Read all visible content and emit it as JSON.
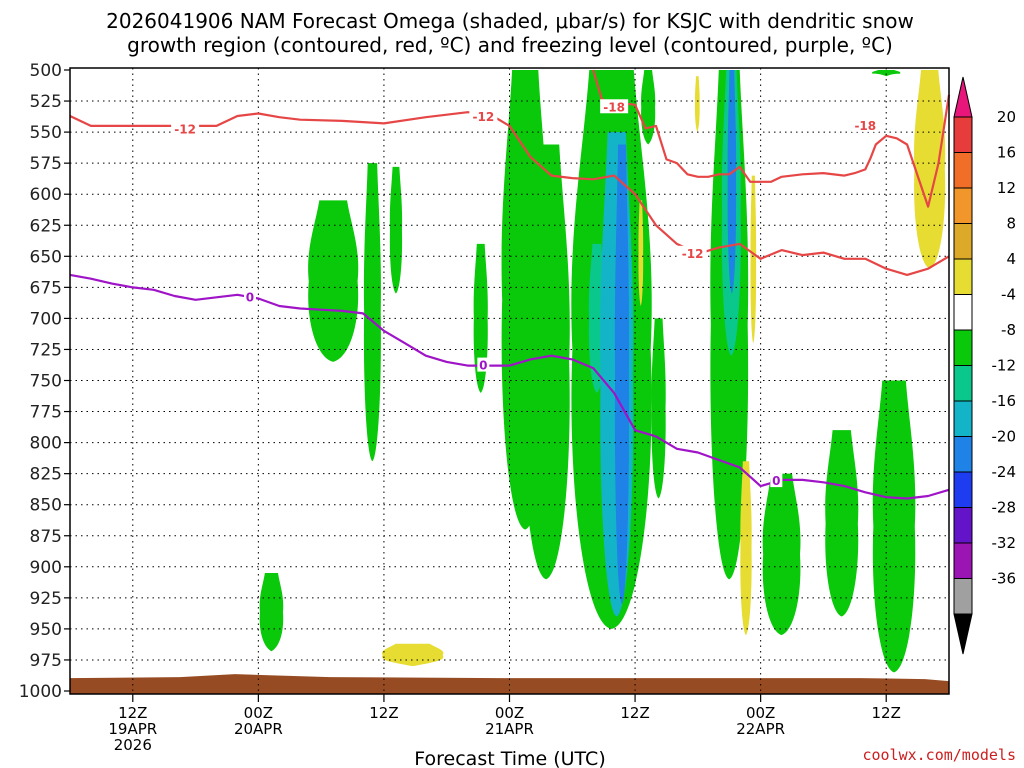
{
  "chart_data": {
    "type": "heatmap",
    "title_line1": "2026041906 NAM Forecast Omega (shaded, μbar/s) for KSJC with dendritic snow",
    "title_line2": "growth region (contoured, red, ºC) and freezing level (contoured, purple, ºC)",
    "xlabel": "Forecast Time (UTC)",
    "ylabel": "",
    "credit": "coolwx.com/models",
    "y_ticks": [
      "500",
      "525",
      "550",
      "575",
      "600",
      "625",
      "650",
      "675",
      "700",
      "725",
      "750",
      "775",
      "800",
      "825",
      "850",
      "875",
      "900",
      "925",
      "950",
      "975",
      "1000"
    ],
    "x_ticks": [
      {
        "t": 12,
        "line1": "12Z",
        "line2": "19APR",
        "line3": "2026"
      },
      {
        "t": 24,
        "line1": "00Z",
        "line2": "20APR",
        "line3": ""
      },
      {
        "t": 36,
        "line1": "12Z",
        "line2": "",
        "line3": ""
      },
      {
        "t": 48,
        "line1": "00Z",
        "line2": "21APR",
        "line3": ""
      },
      {
        "t": 60,
        "line1": "12Z",
        "line2": "",
        "line3": ""
      },
      {
        "t": 72,
        "line1": "00Z",
        "line2": "22APR",
        "line3": ""
      },
      {
        "t": 84,
        "line1": "12Z",
        "line2": "",
        "line3": ""
      }
    ],
    "x_range_hours": [
      6,
      90
    ],
    "y_range_hPa": [
      500,
      1000
    ],
    "grid": true,
    "colorbar": {
      "label_values": [
        "20",
        "16",
        "12",
        "8",
        "4",
        "-4",
        "-8",
        "-12",
        "-16",
        "-20",
        "-24",
        "-28",
        "-32",
        "-36"
      ],
      "colors": [
        "#e8167a",
        "#e63c3c",
        "#f06e28",
        "#f0962a",
        "#dcaa28",
        "#e6dc32",
        "#ffffff",
        "#0ac80a",
        "#0ac88c",
        "#14b4c8",
        "#1e82e6",
        "#1e3cf0",
        "#6414c8",
        "#9b14b4",
        "#a0a0a0",
        "#000000"
      ]
    },
    "omega_regions": [
      {
        "level": "-4",
        "time": [
          28.5,
          33.8
        ],
        "p": [
          605,
          735
        ],
        "note": "weak ascent"
      },
      {
        "level": "-4",
        "time": [
          34.0,
          35.8
        ],
        "p": [
          575,
          815
        ],
        "note": "weak ascent"
      },
      {
        "level": "-4",
        "time": [
          36.5,
          37.8
        ],
        "p": [
          578,
          680
        ],
        "note": "weak ascent"
      },
      {
        "level": "-4",
        "time": [
          24.0,
          26.5
        ],
        "p": [
          905,
          968
        ],
        "note": "weak ascent"
      },
      {
        "level": "-4",
        "time": [
          44.5,
          46.0
        ],
        "p": [
          640,
          760
        ],
        "note": "weak ascent"
      },
      {
        "level": "-4",
        "time": [
          47.0,
          52.0
        ],
        "p": [
          500,
          870
        ],
        "note": "weak ascent"
      },
      {
        "level": "-4",
        "time": [
          49.0,
          54.0
        ],
        "p": [
          560,
          910
        ],
        "note": "weak ascent"
      },
      {
        "level": "-4",
        "time": [
          53.5,
          62.0
        ],
        "p": [
          500,
          950
        ],
        "note": "weak ascent"
      },
      {
        "level": "-8",
        "time": [
          55.5,
          57.2
        ],
        "p": [
          640,
          760
        ],
        "note": "moderate ascent"
      },
      {
        "level": "-12",
        "time": [
          56.5,
          60.0
        ],
        "p": [
          550,
          940
        ],
        "note": "strong ascent"
      },
      {
        "level": "-16",
        "time": [
          58.0,
          59.5
        ],
        "p": [
          560,
          930
        ],
        "note": "strong ascent"
      },
      {
        "level": "-4",
        "time": [
          60.5,
          62.0
        ],
        "p": [
          500,
          560
        ],
        "note": "weak ascent"
      },
      {
        "level": "-4",
        "time": [
          61.5,
          63.0
        ],
        "p": [
          700,
          845
        ],
        "note": "weak ascent"
      },
      {
        "level": "-4",
        "time": [
          67.0,
          71.0
        ],
        "p": [
          500,
          910
        ],
        "note": "weak ascent"
      },
      {
        "level": "-8",
        "time": [
          68.2,
          70.2
        ],
        "p": [
          500,
          730
        ],
        "note": "moderate ascent"
      },
      {
        "level": "-16",
        "time": [
          68.8,
          69.7
        ],
        "p": [
          500,
          680
        ],
        "note": "strong ascent"
      },
      {
        "level": "-4",
        "time": [
          72.0,
          76.0
        ],
        "p": [
          825,
          955
        ],
        "note": "weak ascent"
      },
      {
        "level": "-4",
        "time": [
          78.0,
          81.5
        ],
        "p": [
          790,
          940
        ],
        "note": "weak ascent"
      },
      {
        "level": "-4",
        "time": [
          82.5,
          87.0
        ],
        "p": [
          750,
          985
        ],
        "note": "weak ascent"
      },
      {
        "level": "-4",
        "time": [
          82.5,
          85.5
        ],
        "p": [
          500,
          505
        ],
        "note": "weak ascent"
      },
      {
        "level": "4",
        "time": [
          86.5,
          89.8
        ],
        "p": [
          500,
          660
        ],
        "note": "descent"
      },
      {
        "level": "4",
        "time": [
          65.7,
          66.2
        ],
        "p": [
          505,
          550
        ],
        "note": "descent"
      },
      {
        "level": "4",
        "time": [
          60.3,
          60.8
        ],
        "p": [
          605,
          690
        ],
        "note": "descent"
      },
      {
        "level": "4",
        "time": [
          70.0,
          71.2
        ],
        "p": [
          815,
          955
        ],
        "note": "descent"
      },
      {
        "level": "4",
        "time": [
          71.0,
          71.6
        ],
        "p": [
          585,
          720
        ],
        "note": "descent"
      },
      {
        "level": "4",
        "time": [
          35.5,
          42.0
        ],
        "p": [
          962,
          980
        ],
        "note": "descent"
      }
    ],
    "series": [
      {
        "name": "",
        "kind": "isotherm",
        "label": "-12",
        "color": "#e64646",
        "t": [
          6,
          8,
          12,
          16,
          20,
          22,
          24,
          26,
          28,
          32,
          36,
          40,
          44,
          46,
          48,
          50,
          52,
          54,
          56,
          58,
          60,
          62,
          64,
          66,
          68,
          70,
          72,
          74,
          76,
          78,
          80,
          82,
          84,
          86,
          88,
          90
        ],
        "p": [
          537,
          545,
          545,
          545,
          545,
          537,
          535,
          538,
          540,
          541,
          543,
          538,
          534,
          535,
          545,
          570,
          585,
          587,
          588,
          585,
          600,
          625,
          640,
          648,
          643,
          640,
          652,
          645,
          649,
          647,
          652,
          652,
          660,
          665,
          660,
          650
        ]
      },
      {
        "name": "",
        "kind": "isotherm",
        "label": "-18",
        "color": "#e64646",
        "t": [
          56.0,
          56.8,
          58.0,
          59.0,
          60.0,
          61.0,
          62.0,
          63.0,
          64.0,
          65.0,
          66.0,
          67.0,
          68.0,
          69.0,
          70.0,
          71.0,
          72.0,
          73.0,
          74.0,
          76.0,
          78.0,
          80.0,
          81.0,
          82.0,
          82.5,
          83.0,
          84.0,
          85.0,
          86.0,
          87.0,
          88.0,
          89.0,
          90.0
        ],
        "p": [
          500,
          523,
          530,
          527,
          528,
          547,
          545,
          572,
          575,
          584,
          586,
          586,
          584,
          584,
          578,
          590,
          590,
          590,
          586,
          584,
          583,
          585,
          583,
          580,
          571,
          560,
          553,
          555,
          560,
          585,
          610,
          575,
          520
        ]
      },
      {
        "name": "",
        "kind": "freezing_level",
        "label": "0",
        "color": "#a014c8",
        "t": [
          6,
          8,
          10,
          12,
          14,
          16,
          18,
          20,
          22,
          24,
          26,
          28,
          30,
          32,
          34,
          36,
          38,
          40,
          42,
          44,
          46,
          48,
          50,
          52,
          54,
          56,
          58,
          60,
          62,
          64,
          66,
          68,
          70,
          72,
          74,
          76,
          78,
          80,
          82,
          84,
          86,
          88,
          90
        ],
        "p": [
          665,
          668,
          672,
          675,
          677,
          682,
          685,
          683,
          681,
          684,
          690,
          692,
          693,
          694,
          696,
          710,
          720,
          730,
          735,
          738,
          738,
          738,
          733,
          730,
          733,
          740,
          760,
          790,
          795,
          805,
          808,
          814,
          820,
          835,
          830,
          830,
          832,
          835,
          840,
          844,
          845,
          843,
          838
        ]
      }
    ],
    "contour_labels": [
      {
        "text": "-12",
        "t": 17.0,
        "p": 548,
        "series": 0
      },
      {
        "text": "-12",
        "t": 45.5,
        "p": 538,
        "series": 0
      },
      {
        "text": "-12",
        "t": 65.5,
        "p": 648,
        "series": 0
      },
      {
        "text": "-18",
        "t": 58.0,
        "p": 530,
        "series": 1
      },
      {
        "text": "-18",
        "t": 82.0,
        "p": 545,
        "series": 1
      },
      {
        "text": "0",
        "t": 23.2,
        "p": 683,
        "series": 2
      },
      {
        "text": "0",
        "t": 45.5,
        "p": 738,
        "series": 2
      },
      {
        "text": "0",
        "t": 73.5,
        "p": 831,
        "series": 2
      }
    ],
    "terrain_color": "#964b23",
    "terrain_p": 988
  }
}
